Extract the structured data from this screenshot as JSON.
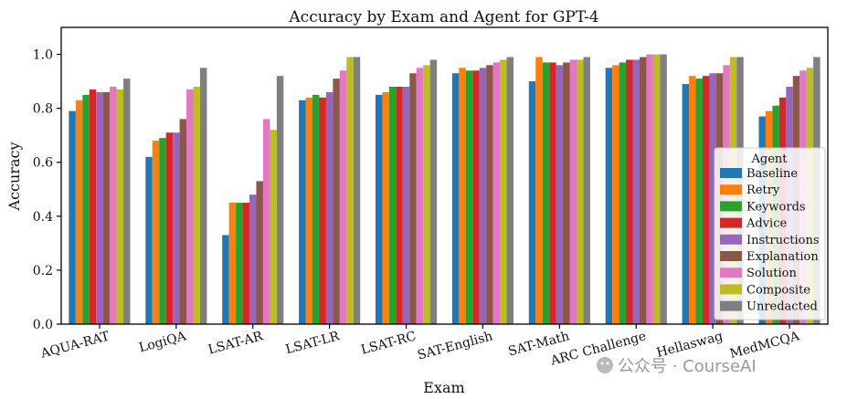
{
  "chart_data": {
    "type": "bar",
    "title": "Accuracy by Exam and Agent for GPT-4",
    "xlabel": "Exam",
    "ylabel": "Accuracy",
    "ylim": [
      0,
      1.1
    ],
    "yticks": [
      "0.0",
      "0.2",
      "0.4",
      "0.6",
      "0.8",
      "1.0"
    ],
    "grid": false,
    "legend": {
      "title": "Agent",
      "placement": "lower-right"
    },
    "categories": [
      "AQUA-RAT",
      "LogiQA",
      "LSAT-AR",
      "LSAT-LR",
      "LSAT-RC",
      "SAT-English",
      "SAT-Math",
      "ARC Challenge",
      "Hellaswag",
      "MedMCQA"
    ],
    "series": [
      {
        "name": "Baseline",
        "color": "#1f77b4",
        "values": [
          0.79,
          0.62,
          0.33,
          0.83,
          0.85,
          0.93,
          0.9,
          0.95,
          0.89,
          0.77
        ]
      },
      {
        "name": "Retry",
        "color": "#ff7f0e",
        "values": [
          0.83,
          0.68,
          0.45,
          0.84,
          0.86,
          0.95,
          0.99,
          0.96,
          0.92,
          0.79
        ]
      },
      {
        "name": "Keywords",
        "color": "#2ca02c",
        "values": [
          0.85,
          0.69,
          0.45,
          0.85,
          0.88,
          0.94,
          0.97,
          0.97,
          0.91,
          0.81
        ]
      },
      {
        "name": "Advice",
        "color": "#d62728",
        "values": [
          0.87,
          0.71,
          0.45,
          0.84,
          0.88,
          0.94,
          0.97,
          0.98,
          0.92,
          0.84
        ]
      },
      {
        "name": "Instructions",
        "color": "#9467bd",
        "values": [
          0.86,
          0.71,
          0.48,
          0.86,
          0.88,
          0.95,
          0.96,
          0.98,
          0.93,
          0.88
        ]
      },
      {
        "name": "Explanation",
        "color": "#8c564b",
        "values": [
          0.86,
          0.76,
          0.53,
          0.91,
          0.93,
          0.96,
          0.97,
          0.99,
          0.93,
          0.92
        ]
      },
      {
        "name": "Solution",
        "color": "#e377c2",
        "values": [
          0.88,
          0.87,
          0.76,
          0.94,
          0.95,
          0.97,
          0.98,
          1.0,
          0.96,
          0.94
        ]
      },
      {
        "name": "Composite",
        "color": "#bcbd22",
        "values": [
          0.87,
          0.88,
          0.72,
          0.99,
          0.96,
          0.98,
          0.98,
          1.0,
          0.99,
          0.95
        ]
      },
      {
        "name": "Unredacted",
        "color": "#7f7f7f",
        "values": [
          0.91,
          0.95,
          0.92,
          0.99,
          0.98,
          0.99,
          0.99,
          1.0,
          0.99,
          0.99
        ]
      }
    ]
  },
  "watermark": {
    "text": "公众号 · CourseAI",
    "icon": "wechat-icon"
  }
}
